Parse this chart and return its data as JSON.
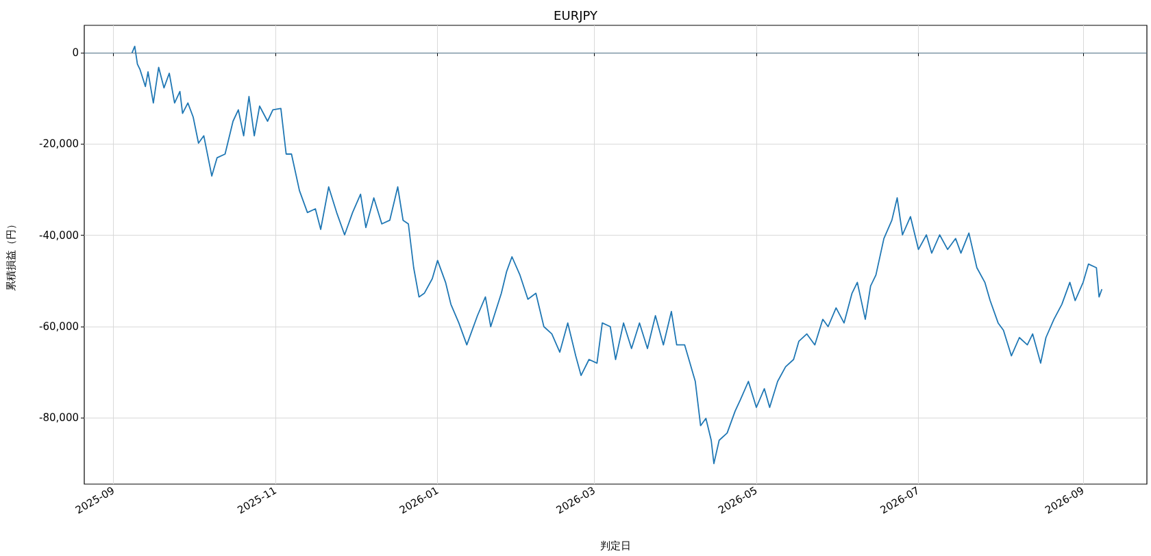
{
  "chart_data": {
    "type": "line",
    "title": "EURJPY",
    "xlabel": "判定日",
    "ylabel": "累積損益（円）",
    "xlim": [
      "2025-08-21",
      "2026-09-25"
    ],
    "xticks": [
      {
        "value": "2025-09-01",
        "label": "2025-09"
      },
      {
        "value": "2025-11-01",
        "label": "2025-11"
      },
      {
        "value": "2026-01-01",
        "label": "2026-01"
      },
      {
        "value": "2026-03-01",
        "label": "2026-03"
      },
      {
        "value": "2026-05-01",
        "label": "2026-05"
      },
      {
        "value": "2026-07-01",
        "label": "2026-07"
      },
      {
        "value": "2026-09-01",
        "label": "2026-09"
      }
    ],
    "ylim": [
      -94500,
      6000
    ],
    "yticks": [
      {
        "value": -80000,
        "label": "-80,000"
      },
      {
        "value": -60000,
        "label": "-60,000"
      },
      {
        "value": -40000,
        "label": "-40,000"
      },
      {
        "value": -20000,
        "label": "-20,000"
      },
      {
        "value": 0,
        "label": "0"
      }
    ],
    "grid": true,
    "marker": "none",
    "line_style": "solid",
    "ref_lines": [
      {
        "axis": "y",
        "value": 0,
        "color": "#4a6b82"
      }
    ],
    "series": [
      {
        "color": "#1f77b4",
        "x": [
          "2025-09-08",
          "2025-09-09",
          "2025-09-10",
          "2025-09-11",
          "2025-09-13",
          "2025-09-14",
          "2025-09-16",
          "2025-09-18",
          "2025-09-20",
          "2025-09-22",
          "2025-09-24",
          "2025-09-26",
          "2025-09-27",
          "2025-09-29",
          "2025-10-01",
          "2025-10-03",
          "2025-10-05",
          "2025-10-08",
          "2025-10-10",
          "2025-10-13",
          "2025-10-16",
          "2025-10-18",
          "2025-10-20",
          "2025-10-22",
          "2025-10-24",
          "2025-10-26",
          "2025-10-29",
          "2025-10-31",
          "2025-11-03",
          "2025-11-05",
          "2025-11-07",
          "2025-11-10",
          "2025-11-13",
          "2025-11-16",
          "2025-11-18",
          "2025-11-21",
          "2025-11-24",
          "2025-11-27",
          "2025-11-30",
          "2025-12-03",
          "2025-12-05",
          "2025-12-08",
          "2025-12-11",
          "2025-12-14",
          "2025-12-17",
          "2025-12-19",
          "2025-12-21",
          "2025-12-23",
          "2025-12-25",
          "2025-12-27",
          "2025-12-30",
          "2026-01-01",
          "2026-01-04",
          "2026-01-06",
          "2026-01-09",
          "2026-01-12",
          "2026-01-16",
          "2026-01-19",
          "2026-01-21",
          "2026-01-25",
          "2026-01-27",
          "2026-01-29",
          "2026-02-01",
          "2026-02-04",
          "2026-02-07",
          "2026-02-10",
          "2026-02-13",
          "2026-02-16",
          "2026-02-19",
          "2026-02-22",
          "2026-02-24",
          "2026-02-27",
          "2026-03-02",
          "2026-03-04",
          "2026-03-07",
          "2026-03-09",
          "2026-03-12",
          "2026-03-15",
          "2026-03-18",
          "2026-03-21",
          "2026-03-24",
          "2026-03-27",
          "2026-03-30",
          "2026-04-01",
          "2026-04-04",
          "2026-04-06",
          "2026-04-08",
          "2026-04-10",
          "2026-04-12",
          "2026-04-14",
          "2026-04-15",
          "2026-04-17",
          "2026-04-20",
          "2026-04-23",
          "2026-04-25",
          "2026-04-28",
          "2026-05-01",
          "2026-05-04",
          "2026-05-06",
          "2026-05-09",
          "2026-05-12",
          "2026-05-15",
          "2026-05-17",
          "2026-05-20",
          "2026-05-23",
          "2026-05-26",
          "2026-05-28",
          "2026-05-31",
          "2026-06-03",
          "2026-06-06",
          "2026-06-08",
          "2026-06-11",
          "2026-06-13",
          "2026-06-15",
          "2026-06-18",
          "2026-06-21",
          "2026-06-23",
          "2026-06-25",
          "2026-06-28",
          "2026-07-01",
          "2026-07-04",
          "2026-07-06",
          "2026-07-09",
          "2026-07-12",
          "2026-07-15",
          "2026-07-17",
          "2026-07-20",
          "2026-07-23",
          "2026-07-26",
          "2026-07-28",
          "2026-07-31",
          "2026-08-02",
          "2026-08-05",
          "2026-08-08",
          "2026-08-11",
          "2026-08-13",
          "2026-08-16",
          "2026-08-18",
          "2026-08-21",
          "2026-08-24",
          "2026-08-27",
          "2026-08-29",
          "2026-09-01",
          "2026-09-03",
          "2026-09-06",
          "2026-09-07",
          "2026-09-08"
        ],
        "values": [
          0,
          1400,
          -2500,
          -3700,
          -7400,
          -4200,
          -11000,
          -3200,
          -7700,
          -4500,
          -11000,
          -8500,
          -13300,
          -11000,
          -14100,
          -19800,
          -18200,
          -27000,
          -23000,
          -22200,
          -15000,
          -12500,
          -18200,
          -9600,
          -18200,
          -11700,
          -15000,
          -12500,
          -12200,
          -22200,
          -22200,
          -30200,
          -35000,
          -34200,
          -38700,
          -29400,
          -35000,
          -39900,
          -35000,
          -31000,
          -38300,
          -31800,
          -37500,
          -36700,
          -29400,
          -36700,
          -37500,
          -47100,
          -53500,
          -52700,
          -49500,
          -45500,
          -50300,
          -55100,
          -59200,
          -64000,
          -57600,
          -53500,
          -60000,
          -52700,
          -47900,
          -44700,
          -48700,
          -54000,
          -52700,
          -60000,
          -61600,
          -65600,
          -59200,
          -66400,
          -70700,
          -67200,
          -68000,
          -59200,
          -60000,
          -67200,
          -59200,
          -64800,
          -59200,
          -64800,
          -57600,
          -64000,
          -56700,
          -64000,
          -64000,
          -68000,
          -72000,
          -81700,
          -80100,
          -84900,
          -90000,
          -84900,
          -83300,
          -78500,
          -76000,
          -72000,
          -77700,
          -73600,
          -77700,
          -72000,
          -68800,
          -67200,
          -63200,
          -61600,
          -64000,
          -58400,
          -60000,
          -55900,
          -59200,
          -52700,
          -50300,
          -58400,
          -51100,
          -48700,
          -40700,
          -36700,
          -31800,
          -39900,
          -35900,
          -43100,
          -39900,
          -43900,
          -39900,
          -43100,
          -40700,
          -43900,
          -39500,
          -47100,
          -50300,
          -54300,
          -59200,
          -60800,
          -66400,
          -62400,
          -64000,
          -61600,
          -68000,
          -62400,
          -58400,
          -55100,
          -50300,
          -54300,
          -50300,
          -46300,
          -47100,
          -53500,
          -51900
        ]
      }
    ]
  }
}
